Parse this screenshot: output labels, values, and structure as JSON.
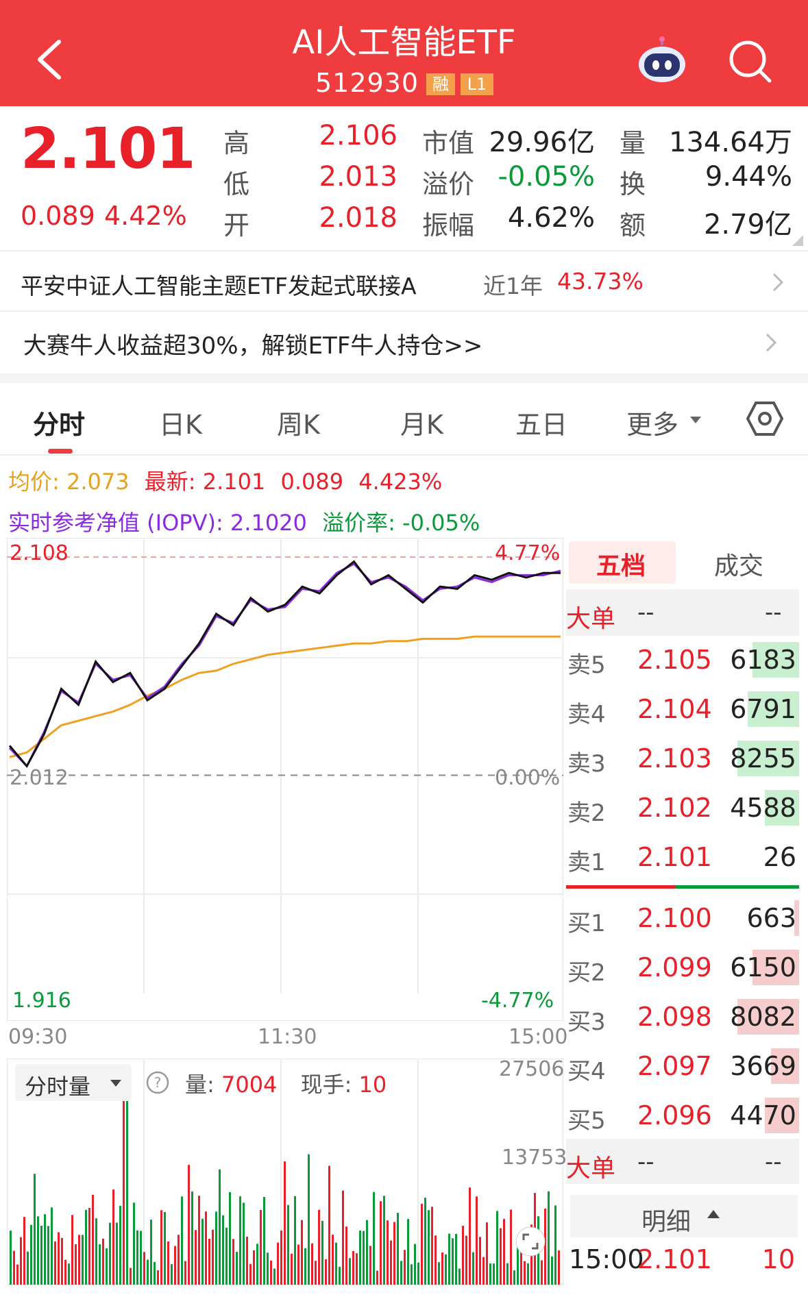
{
  "header": {
    "title": "AI人工智能ETF",
    "code": "512930",
    "badge_rong": "融",
    "badge_l1": "L1"
  },
  "quote": {
    "price": "2.101",
    "change": "0.089",
    "change_pct": "4.42%",
    "fields": [
      {
        "label": "高",
        "value": "2.106"
      },
      {
        "label": "低",
        "value": "2.013"
      },
      {
        "label": "开",
        "value": "2.018"
      },
      {
        "label": "市值",
        "value": "29.96亿"
      },
      {
        "label": "溢价",
        "value": "-0.05%"
      },
      {
        "label": "振幅",
        "value": "4.62%"
      },
      {
        "label": "量",
        "value": "134.64万"
      },
      {
        "label": "换",
        "value": "9.44%"
      },
      {
        "label": "额",
        "value": "2.79亿"
      }
    ]
  },
  "fund_link": {
    "name": "平安中证人工智能主题ETF发起式联接A",
    "period": "近1年",
    "return": "43.73%"
  },
  "promo": {
    "text": "大赛牛人收益超30%，解锁ETF牛人持仓>>"
  },
  "tabs": [
    "分时",
    "日K",
    "周K",
    "月K",
    "五日",
    "更多"
  ],
  "info": {
    "avg_label": "均价:",
    "avg": "2.073",
    "latest_label": "最新:",
    "latest": "2.101",
    "change": "0.089",
    "change_pct": "4.423%",
    "iopv_label": "实时参考净值 (IOPV):",
    "iopv": "2.1020",
    "premium_label": "溢价率:",
    "premium": "-0.05%"
  },
  "chart_data": {
    "type": "line",
    "title": "",
    "ylim": [
      1.916,
      2.108
    ],
    "y_axis_left": [
      "2.108",
      "2.012",
      "1.916"
    ],
    "y_axis_right": [
      "4.77%",
      "0.00%",
      "-4.77%"
    ],
    "x_ticks": [
      "09:30",
      "11:30",
      "15:00"
    ],
    "series": [
      {
        "name": "最新",
        "values": [
          2.025,
          2.016,
          2.03,
          2.05,
          2.043,
          2.062,
          2.053,
          2.057,
          2.045,
          2.05,
          2.06,
          2.07,
          2.083,
          2.078,
          2.09,
          2.084,
          2.087,
          2.095,
          2.092,
          2.1,
          2.106,
          2.096,
          2.1,
          2.094,
          2.088,
          2.095,
          2.094,
          2.1,
          2.098,
          2.101,
          2.099,
          2.101,
          2.101
        ]
      },
      {
        "name": "均价",
        "values": [
          2.02,
          2.022,
          2.028,
          2.034,
          2.036,
          2.038,
          2.04,
          2.043,
          2.047,
          2.05,
          2.054,
          2.057,
          2.058,
          2.061,
          2.063,
          2.065,
          2.066,
          2.067,
          2.068,
          2.069,
          2.07,
          2.07,
          2.071,
          2.071,
          2.072,
          2.072,
          2.072,
          2.073,
          2.073,
          2.073,
          2.073,
          2.073,
          2.073
        ]
      },
      {
        "name": "实时参考净值 (IOPV)",
        "values": [
          2.024,
          2.016,
          2.031,
          2.049,
          2.044,
          2.061,
          2.054,
          2.056,
          2.046,
          2.051,
          2.061,
          2.069,
          2.082,
          2.079,
          2.089,
          2.085,
          2.086,
          2.094,
          2.093,
          2.101,
          2.105,
          2.097,
          2.099,
          2.095,
          2.089,
          2.094,
          2.095,
          2.099,
          2.097,
          2.1,
          2.1,
          2.1,
          2.102
        ]
      }
    ]
  },
  "volume": {
    "selector": "分时量",
    "vol_label": "量:",
    "vol": "7004",
    "now_label": "现手:",
    "now": "10",
    "max": "27506",
    "mid": "13753"
  },
  "orderbook": {
    "tab_active": "五档",
    "tab_other": "成交",
    "big_order": "大单",
    "dash": "--",
    "asks": [
      {
        "side": "卖5",
        "price": "2.105",
        "vol": "6183",
        "ratio": 0.75
      },
      {
        "side": "卖4",
        "price": "2.104",
        "vol": "6791",
        "ratio": 0.83
      },
      {
        "side": "卖3",
        "price": "2.103",
        "vol": "8255",
        "ratio": 1.0
      },
      {
        "side": "卖2",
        "price": "2.102",
        "vol": "4588",
        "ratio": 0.56
      },
      {
        "side": "卖1",
        "price": "2.101",
        "vol": "26",
        "ratio": 0.0
      }
    ],
    "bids": [
      {
        "side": "买1",
        "price": "2.100",
        "vol": "663",
        "ratio": 0.08
      },
      {
        "side": "买2",
        "price": "2.099",
        "vol": "6150",
        "ratio": 0.76
      },
      {
        "side": "买3",
        "price": "2.098",
        "vol": "8082",
        "ratio": 1.0
      },
      {
        "side": "买4",
        "price": "2.097",
        "vol": "3669",
        "ratio": 0.45
      },
      {
        "side": "买5",
        "price": "2.096",
        "vol": "4470",
        "ratio": 0.55
      }
    ],
    "detail_label": "明细",
    "last_trade": {
      "time": "15:00",
      "price": "2.101",
      "vol": "10"
    }
  },
  "colors": {
    "header": "#ee3c3f",
    "up": "#e8202a",
    "down": "#0a9a3a",
    "avg_line": "#f0a020",
    "iopv_line": "#8a2be2"
  }
}
